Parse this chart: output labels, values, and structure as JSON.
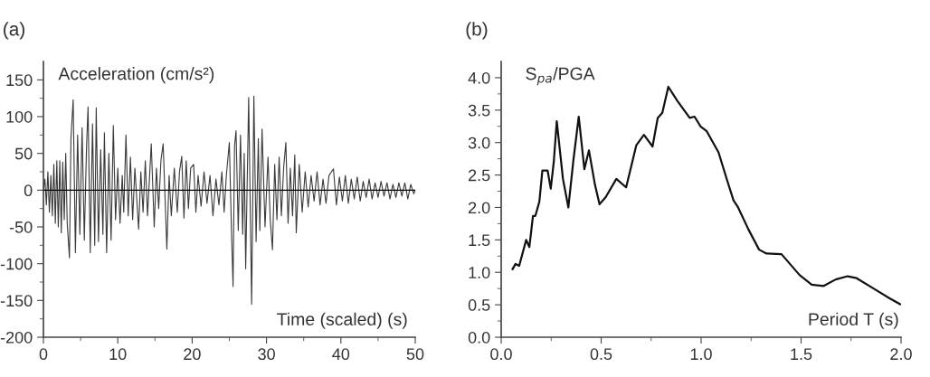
{
  "chart_data": [
    {
      "type": "line",
      "title": "(a)",
      "ylabel": "Acceleration (cm/s²)",
      "xlabel": "Time (scaled) (s)",
      "xlim": [
        0,
        50
      ],
      "xticks": [
        0,
        10,
        20,
        30,
        40,
        50
      ],
      "ylim": [
        -200,
        175
      ],
      "yticks": [
        -200,
        -150,
        -100,
        -50,
        0,
        50,
        100,
        150
      ],
      "ref_lines": [
        {
          "axis": "y",
          "value": 0,
          "color": "#000000"
        }
      ],
      "series": [
        {
          "color": "#3a3a3a",
          "x": [
            0.0,
            0.2,
            0.4,
            0.6,
            0.8,
            1.0,
            1.2,
            1.4,
            1.6,
            1.8,
            2.0,
            2.2,
            2.4,
            2.6,
            2.8,
            3.0,
            3.2,
            3.5,
            3.7,
            4.0,
            4.3,
            4.6,
            4.9,
            5.2,
            5.5,
            5.8,
            6.0,
            6.3,
            6.6,
            6.9,
            7.1,
            7.4,
            7.7,
            8.0,
            8.2,
            8.5,
            8.8,
            9.1,
            9.4,
            9.7,
            10.0,
            10.3,
            10.6,
            10.8,
            11.1,
            11.4,
            11.7,
            12.0,
            12.3,
            12.8,
            13.1,
            13.4,
            13.7,
            14.0,
            14.5,
            14.9,
            15.2,
            15.5,
            15.8,
            16.1,
            16.6,
            16.9,
            17.2,
            17.6,
            18.0,
            18.3,
            18.6,
            18.9,
            19.2,
            19.5,
            19.8,
            20.2,
            20.5,
            20.8,
            21.2,
            21.6,
            22.0,
            22.4,
            22.8,
            23.2,
            23.6,
            24.0,
            24.3,
            24.6,
            25.0,
            25.3,
            25.5,
            25.7,
            25.9,
            26.2,
            26.5,
            26.8,
            27.0,
            27.2,
            27.6,
            28.0,
            28.3,
            28.6,
            28.9,
            29.1,
            29.4,
            29.8,
            30.2,
            30.5,
            30.8,
            31.1,
            31.4,
            31.7,
            32.0,
            32.3,
            32.6,
            32.9,
            33.2,
            33.5,
            33.8,
            34.0,
            34.4,
            34.8,
            35.2,
            35.6,
            36.0,
            36.4,
            36.8,
            37.2,
            37.6,
            38.0,
            38.4,
            39.0,
            39.4,
            39.8,
            40.2,
            40.6,
            41.0,
            41.4,
            41.8,
            42.2,
            42.6,
            43.0,
            43.4,
            43.8,
            44.2,
            44.6,
            45.0,
            45.4,
            45.8,
            46.2,
            46.6,
            47.0,
            47.4,
            47.8,
            48.2,
            48.6,
            49.0,
            49.4,
            49.8,
            50.0
          ],
          "values": [
            0,
            15,
            -20,
            25,
            -30,
            20,
            -35,
            35,
            -45,
            40,
            -50,
            40,
            -58,
            38,
            -40,
            50,
            -45,
            -92,
            70,
            123,
            -85,
            75,
            -60,
            85,
            -68,
            60,
            113,
            -85,
            90,
            -75,
            112,
            -70,
            55,
            -60,
            78,
            -85,
            50,
            -68,
            88,
            -40,
            30,
            -45,
            20,
            -30,
            75,
            -35,
            45,
            -40,
            30,
            -53,
            25,
            -30,
            40,
            -35,
            63,
            -50,
            30,
            -25,
            40,
            63,
            -80,
            20,
            -35,
            30,
            -30,
            25,
            46,
            -38,
            40,
            -25,
            30,
            35,
            -30,
            20,
            -22,
            25,
            -18,
            20,
            -35,
            15,
            -20,
            25,
            -30,
            20,
            65,
            -60,
            -131,
            60,
            81,
            -55,
            75,
            -60,
            50,
            -107,
            126,
            -155,
            128,
            -70,
            70,
            -55,
            83,
            -50,
            45,
            -40,
            -81,
            35,
            -40,
            45,
            -35,
            30,
            65,
            -45,
            30,
            -35,
            48,
            -58,
            35,
            -30,
            25,
            -23,
            20,
            -15,
            25,
            -20,
            15,
            -18,
            20,
            29,
            -20,
            18,
            -15,
            20,
            -18,
            15,
            -12,
            18,
            -15,
            12,
            -10,
            15,
            -12,
            10,
            -10,
            12,
            -8,
            10,
            -12,
            8,
            -10,
            10,
            -8,
            10,
            -12,
            8,
            -5,
            0
          ]
        }
      ]
    },
    {
      "type": "line",
      "title": "(b)",
      "ylabel": "S$_{pa}$/PGA",
      "xlabel": "Period T (s)",
      "xlim": [
        0,
        2.0
      ],
      "xticks": [
        {
          "value": 0,
          "label": "0.0"
        },
        0.5,
        {
          "value": 1,
          "label": "1.0"
        },
        1.5,
        {
          "value": 2,
          "label": "2.0"
        }
      ],
      "ylim": [
        0,
        4.25
      ],
      "yticks": [
        {
          "value": 0,
          "label": "0.0"
        },
        0.5,
        {
          "value": 1,
          "label": "1.0"
        },
        1.5,
        {
          "value": 2,
          "label": "2.0"
        },
        2.5,
        {
          "value": 3,
          "label": "3.0"
        },
        3.5,
        {
          "value": 4,
          "label": "4.0"
        }
      ],
      "series": [
        {
          "color": "#111111",
          "x": [
            0.057,
            0.072,
            0.09,
            0.125,
            0.141,
            0.159,
            0.171,
            0.191,
            0.206,
            0.232,
            0.248,
            0.263,
            0.278,
            0.309,
            0.336,
            0.362,
            0.388,
            0.416,
            0.439,
            0.469,
            0.492,
            0.523,
            0.576,
            0.625,
            0.676,
            0.714,
            0.757,
            0.783,
            0.806,
            0.836,
            0.882,
            0.943,
            0.967,
            0.997,
            1.027,
            1.087,
            1.132,
            1.162,
            1.185,
            1.237,
            1.29,
            1.327,
            1.402,
            1.492,
            1.553,
            1.613,
            1.673,
            1.733,
            1.778,
            1.868,
            1.943,
            1.995
          ],
          "values": [
            1.05,
            1.13,
            1.1,
            1.5,
            1.39,
            1.87,
            1.87,
            2.09,
            2.57,
            2.57,
            2.29,
            2.7,
            3.33,
            2.44,
            2.0,
            2.75,
            3.4,
            2.59,
            2.88,
            2.35,
            2.05,
            2.16,
            2.44,
            2.31,
            2.96,
            3.12,
            2.94,
            3.38,
            3.46,
            3.86,
            3.64,
            3.38,
            3.4,
            3.25,
            3.18,
            2.85,
            2.4,
            2.11,
            2.0,
            1.66,
            1.35,
            1.29,
            1.28,
            0.96,
            0.81,
            0.79,
            0.89,
            0.94,
            0.91,
            0.74,
            0.6,
            0.51
          ]
        }
      ]
    }
  ]
}
